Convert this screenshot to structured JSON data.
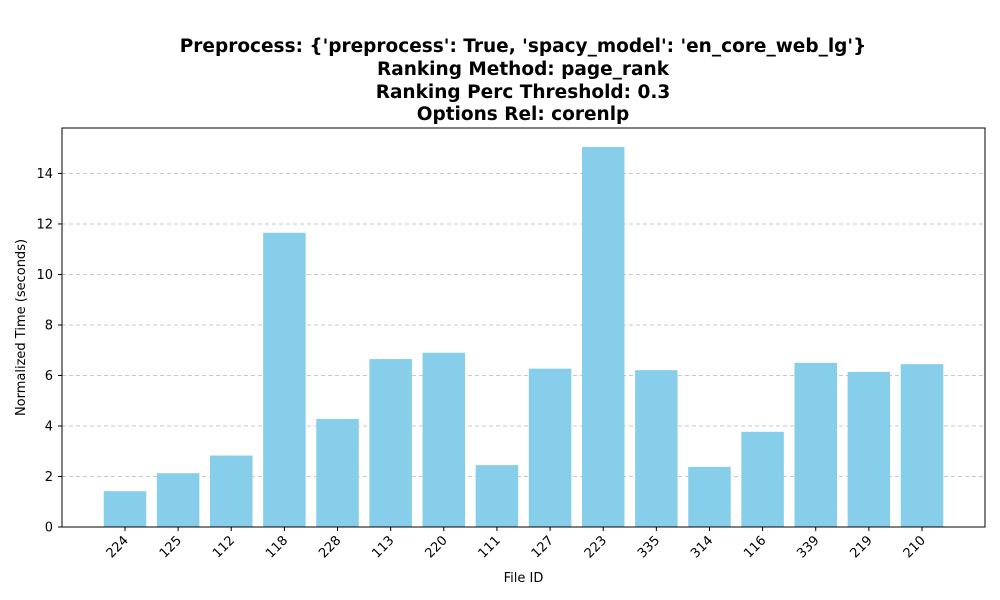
{
  "chart_data": {
    "type": "bar",
    "title_lines": [
      "Preprocess: {'preprocess': True, 'spacy_model': 'en_core_web_lg'}",
      "Ranking Method: page_rank",
      "Ranking Perc Threshold: 0.3",
      "Options Rel: corenlp"
    ],
    "xlabel": "File ID",
    "ylabel": "Normalized Time (seconds)",
    "categories": [
      "224",
      "125",
      "112",
      "118",
      "228",
      "113",
      "220",
      "111",
      "127",
      "223",
      "335",
      "314",
      "116",
      "339",
      "219",
      "210"
    ],
    "values": [
      1.42,
      2.13,
      2.83,
      11.65,
      4.28,
      6.65,
      6.9,
      2.45,
      6.27,
      15.05,
      6.21,
      2.38,
      3.77,
      6.5,
      6.14,
      6.45
    ],
    "ylim": [
      0,
      15.8
    ],
    "yticks": [
      0,
      2,
      4,
      6,
      8,
      10,
      12,
      14
    ],
    "grid": "y-dashed",
    "bar_color": "#87CEEB",
    "grid_color": "#c8c8c8",
    "axis_color": "#000000"
  }
}
